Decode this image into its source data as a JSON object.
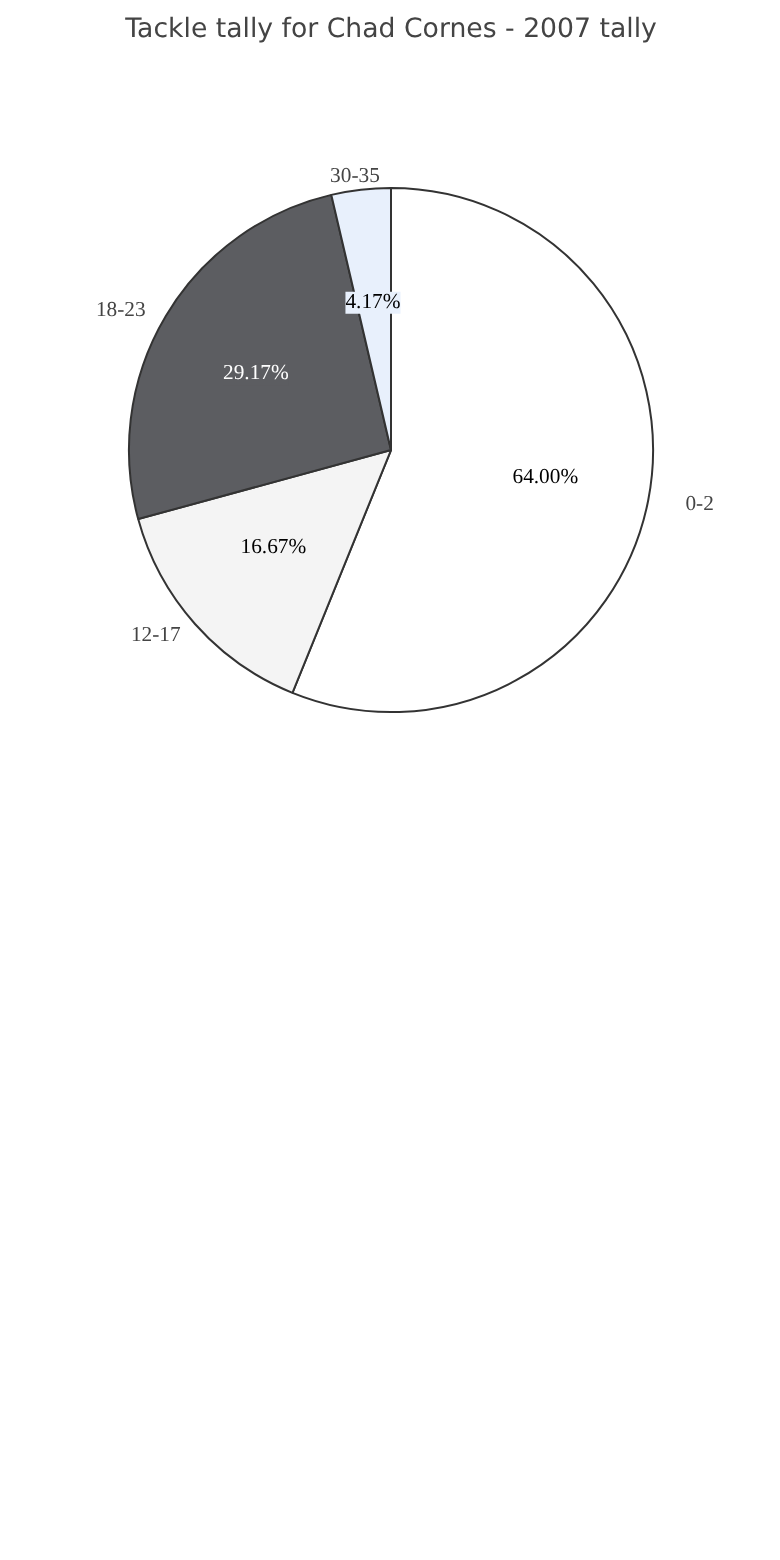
{
  "chart_data": {
    "type": "pie",
    "title": "Tackle tally for Chad Cornes - 2007 tally",
    "categories": [
      "0-2",
      "12-17",
      "18-23",
      "30-35"
    ],
    "values": [
      64.0,
      16.67,
      29.17,
      4.17
    ],
    "value_labels": [
      "64.00%",
      "16.67%",
      "29.17%",
      "4.17%"
    ],
    "colors": [
      "#ffffff",
      "#f4f4f4",
      "#5c5d61",
      "#e8f0fc"
    ]
  }
}
